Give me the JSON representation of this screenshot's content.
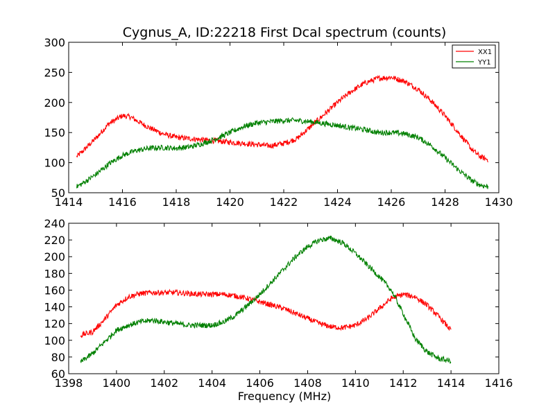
{
  "chart_data": [
    {
      "type": "line",
      "title": "Cygnus_A, ID:22218 First Dcal spectrum (counts)",
      "xlabel": "",
      "ylabel": "",
      "xlim": [
        1414,
        1430
      ],
      "ylim": [
        50,
        300
      ],
      "xticks": [
        1414,
        1416,
        1418,
        1420,
        1422,
        1424,
        1426,
        1428,
        1430
      ],
      "yticks": [
        50,
        100,
        150,
        200,
        250,
        300
      ],
      "legend": {
        "position": "top-right",
        "entries": [
          "XX1",
          "YY1"
        ]
      },
      "grid": false,
      "series": [
        {
          "name": "XX1",
          "color": "#ff0000",
          "x": [
            1414.3,
            1414.5,
            1415.0,
            1415.5,
            1416.0,
            1416.3,
            1416.6,
            1417.0,
            1417.5,
            1418.0,
            1418.5,
            1419.0,
            1419.5,
            1420.0,
            1420.5,
            1421.0,
            1421.5,
            1422.0,
            1422.5,
            1423.0,
            1423.3,
            1423.5,
            1424.0,
            1424.5,
            1425.0,
            1425.5,
            1426.0,
            1426.5,
            1427.0,
            1427.5,
            1428.0,
            1428.5,
            1429.0,
            1429.3,
            1429.6
          ],
          "y": [
            110,
            118,
            140,
            165,
            178,
            176,
            168,
            158,
            148,
            142,
            140,
            138,
            136,
            134,
            132,
            130,
            128,
            132,
            140,
            160,
            172,
            180,
            200,
            218,
            232,
            240,
            242,
            235,
            222,
            202,
            178,
            150,
            122,
            110,
            105
          ]
        },
        {
          "name": "YY1",
          "color": "#008000",
          "x": [
            1414.3,
            1414.5,
            1415.0,
            1415.5,
            1416.0,
            1416.5,
            1417.0,
            1417.5,
            1418.0,
            1418.5,
            1419.0,
            1419.5,
            1420.0,
            1420.5,
            1421.0,
            1421.5,
            1422.0,
            1422.5,
            1423.0,
            1423.5,
            1424.0,
            1424.5,
            1425.0,
            1425.5,
            1426.0,
            1426.5,
            1427.0,
            1427.5,
            1428.0,
            1428.5,
            1429.0,
            1429.3,
            1429.6
          ],
          "y": [
            60,
            65,
            80,
            98,
            112,
            120,
            124,
            125,
            124,
            126,
            132,
            140,
            150,
            160,
            166,
            168,
            170,
            170,
            168,
            165,
            162,
            158,
            155,
            150,
            150,
            148,
            142,
            128,
            108,
            88,
            70,
            63,
            60
          ]
        }
      ]
    },
    {
      "type": "line",
      "title": "",
      "xlabel": "Frequency (MHz)",
      "ylabel": "",
      "xlim": [
        1398,
        1416
      ],
      "ylim": [
        60,
        240
      ],
      "xticks": [
        1398,
        1400,
        1402,
        1404,
        1406,
        1408,
        1410,
        1412,
        1414,
        1416
      ],
      "yticks": [
        60,
        80,
        100,
        120,
        140,
        160,
        180,
        200,
        220,
        240
      ],
      "grid": false,
      "series": [
        {
          "name": "XX1",
          "color": "#ff0000",
          "x": [
            1398.5,
            1399.0,
            1399.5,
            1400.0,
            1400.5,
            1401.0,
            1401.5,
            1402.0,
            1402.5,
            1403.0,
            1403.5,
            1404.0,
            1404.5,
            1405.0,
            1405.5,
            1406.0,
            1406.5,
            1407.0,
            1407.5,
            1408.0,
            1408.5,
            1409.0,
            1409.5,
            1410.0,
            1410.5,
            1411.0,
            1411.5,
            1412.0,
            1412.5,
            1413.0,
            1413.5,
            1414.0
          ],
          "y": [
            106,
            110,
            125,
            142,
            152,
            156,
            157,
            157,
            157,
            156,
            155,
            155,
            155,
            153,
            150,
            146,
            142,
            138,
            132,
            126,
            120,
            116,
            115,
            118,
            126,
            138,
            150,
            155,
            152,
            142,
            128,
            112
          ]
        },
        {
          "name": "YY1",
          "color": "#008000",
          "x": [
            1398.5,
            1399.0,
            1399.5,
            1400.0,
            1400.5,
            1401.0,
            1401.5,
            1402.0,
            1402.5,
            1403.0,
            1403.5,
            1404.0,
            1404.5,
            1405.0,
            1405.5,
            1406.0,
            1406.5,
            1407.0,
            1407.5,
            1408.0,
            1408.5,
            1409.0,
            1409.5,
            1410.0,
            1410.5,
            1411.0,
            1411.5,
            1412.0,
            1412.5,
            1413.0,
            1413.5,
            1414.0
          ],
          "y": [
            74,
            84,
            98,
            112,
            118,
            122,
            124,
            122,
            120,
            118,
            118,
            118,
            122,
            130,
            142,
            155,
            170,
            185,
            200,
            212,
            220,
            222,
            216,
            204,
            190,
            176,
            160,
            132,
            102,
            86,
            78,
            75
          ]
        }
      ]
    }
  ]
}
